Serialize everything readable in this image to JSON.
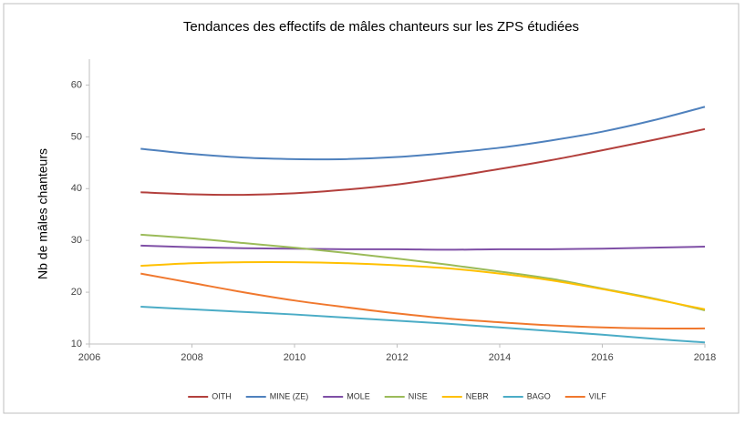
{
  "chart_data": {
    "type": "line",
    "title": "Tendances des effectifs de mâles chanteurs sur les ZPS étudiées",
    "y_label": "Nb de mâles chanteurs",
    "x": [
      2007,
      2008,
      2009,
      2010,
      2011,
      2012,
      2013,
      2014,
      2015,
      2016,
      2017,
      2018
    ],
    "xlim": [
      2006,
      2018
    ],
    "xticks": [
      2006,
      2008,
      2010,
      2012,
      2014,
      2016,
      2018
    ],
    "ylim": [
      10,
      65
    ],
    "yticks": [
      10,
      20,
      30,
      40,
      50,
      60
    ],
    "legend": "bottom",
    "series": [
      {
        "name": "OITH",
        "color": "#b3403d",
        "values": [
          39.3,
          38.9,
          38.8,
          39.1,
          39.8,
          40.8,
          42.2,
          43.8,
          45.5,
          47.4,
          49.4,
          51.5
        ]
      },
      {
        "name": "MINE (ZE)",
        "color": "#4f81bd",
        "values": [
          47.7,
          46.7,
          46.0,
          45.7,
          45.7,
          46.1,
          46.9,
          47.9,
          49.3,
          51.0,
          53.2,
          55.8
        ]
      },
      {
        "name": "MOLE",
        "color": "#7f4fa6",
        "values": [
          29.0,
          28.7,
          28.5,
          28.4,
          28.3,
          28.3,
          28.2,
          28.3,
          28.3,
          28.4,
          28.6,
          28.8
        ]
      },
      {
        "name": "NISE",
        "color": "#9bbb59",
        "values": [
          31.1,
          30.4,
          29.5,
          28.6,
          27.6,
          26.5,
          25.3,
          24.0,
          22.6,
          20.7,
          18.8,
          16.5
        ]
      },
      {
        "name": "NEBR",
        "color": "#ffc000",
        "values": [
          25.1,
          25.6,
          25.8,
          25.8,
          25.6,
          25.2,
          24.6,
          23.6,
          22.3,
          20.6,
          18.7,
          16.7
        ]
      },
      {
        "name": "BAGO",
        "color": "#4bacc6",
        "values": [
          17.2,
          16.7,
          16.2,
          15.7,
          15.1,
          14.5,
          13.9,
          13.2,
          12.5,
          11.8,
          11.0,
          10.3
        ]
      },
      {
        "name": "VILF",
        "color": "#f0782e",
        "values": [
          23.6,
          21.8,
          20.0,
          18.4,
          17.1,
          15.9,
          14.9,
          14.2,
          13.6,
          13.2,
          13.0,
          13.0
        ]
      }
    ]
  }
}
